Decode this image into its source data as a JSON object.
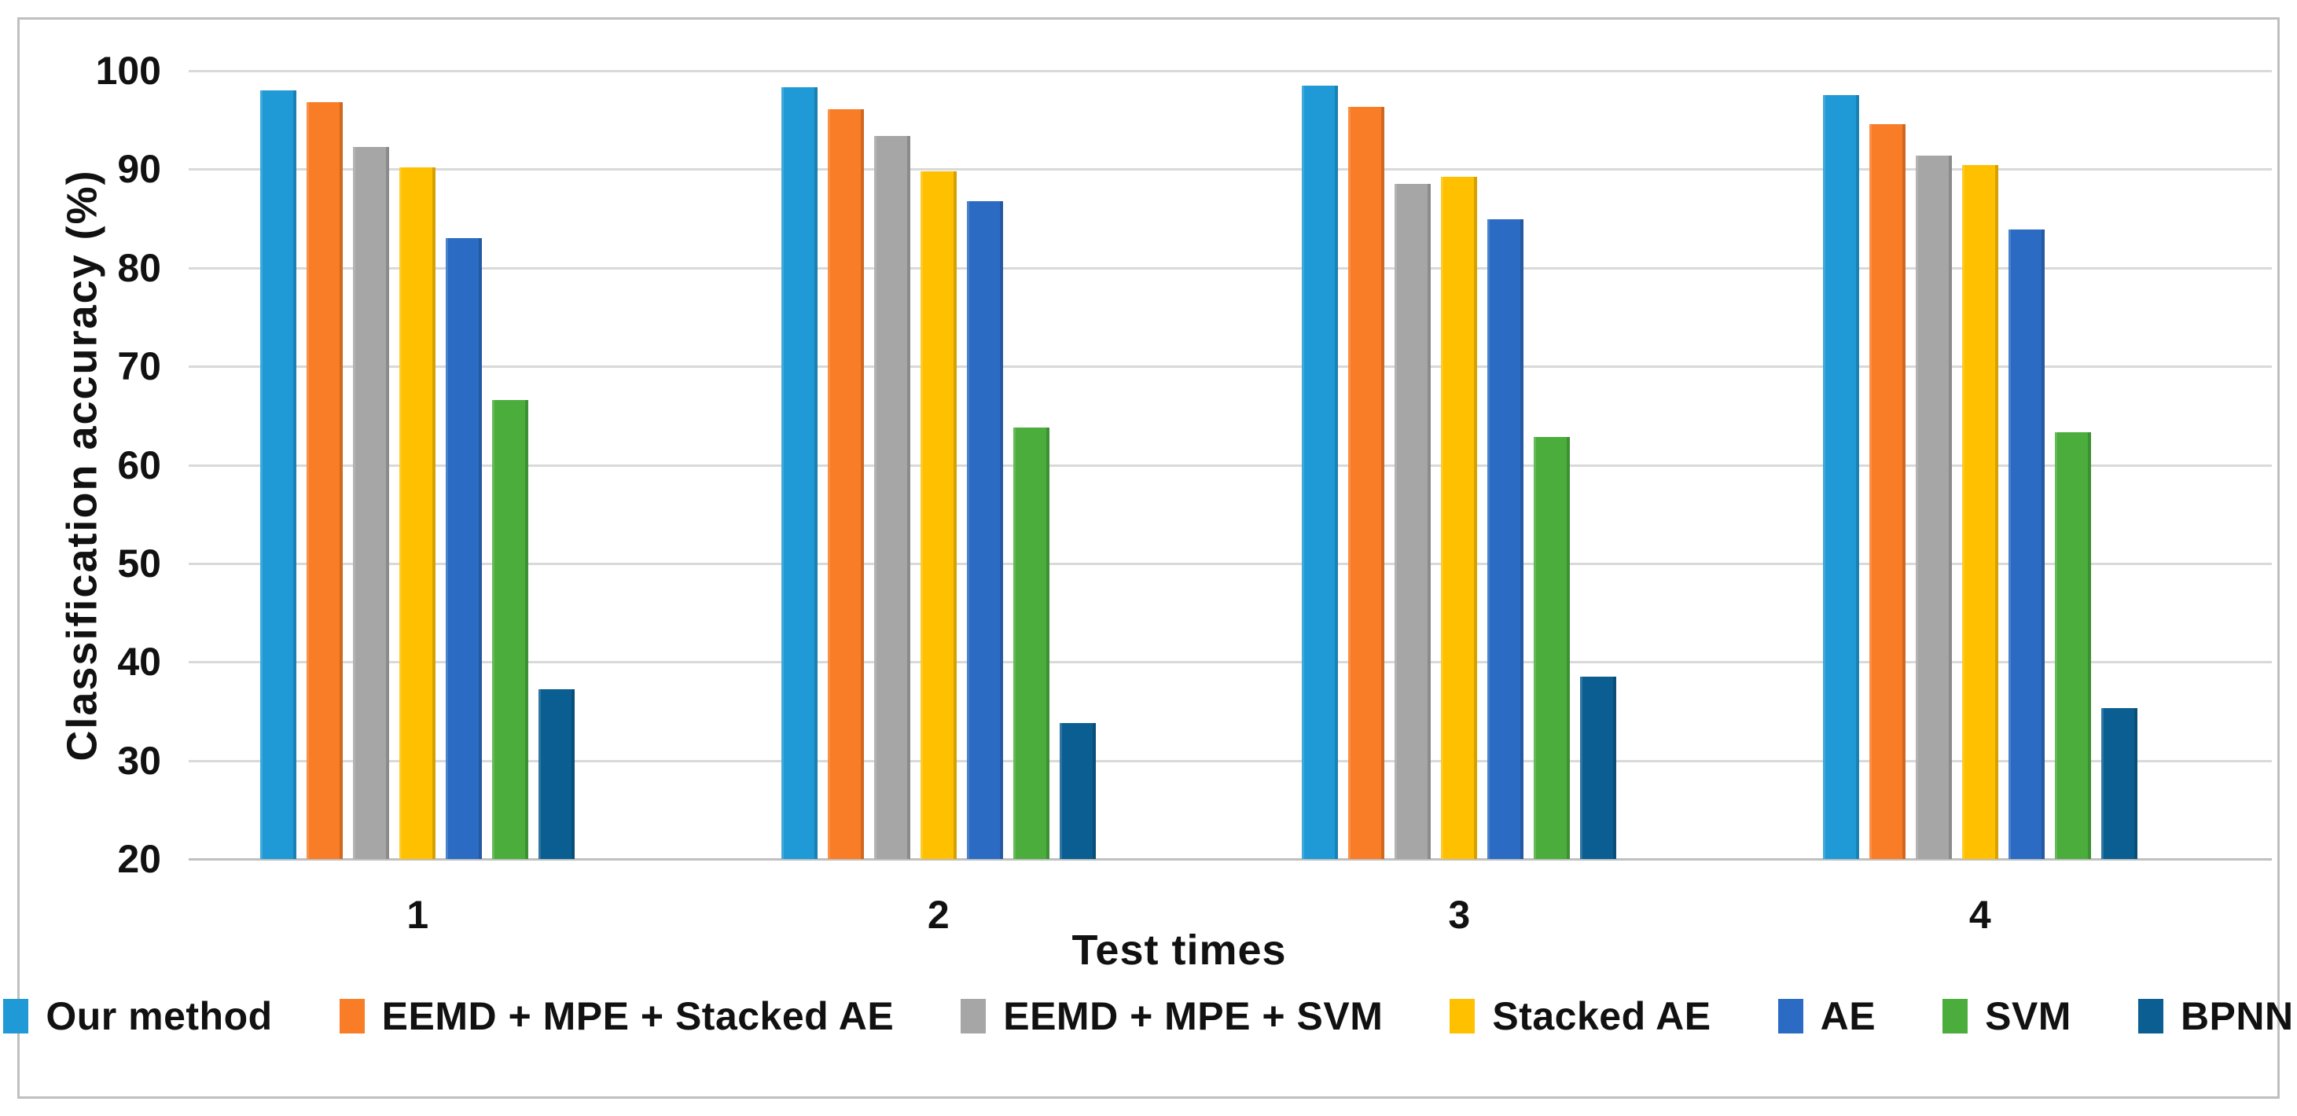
{
  "figure": {
    "background": "#ffffff",
    "border_color": "#bfbfbf",
    "gridline_color": "#d9d9d9",
    "baseline_color": "#bfbfbf",
    "text_color": "#111111"
  },
  "chart_data": {
    "type": "bar",
    "title": "",
    "xlabel": "Test times",
    "ylabel": "Classification accuracy (%)",
    "categories": [
      "1",
      "2",
      "3",
      "4"
    ],
    "y_axis": {
      "min": 20,
      "max": 100,
      "step": 10,
      "ticks": [
        100,
        90,
        80,
        70,
        60,
        50,
        40,
        30,
        20
      ]
    },
    "ylim": [
      20,
      100
    ],
    "grid": true,
    "legend_position": "bottom",
    "series": [
      {
        "name": "Our method",
        "color": "#1f9ad6",
        "values": [
          98.0,
          98.3,
          98.5,
          97.5
        ]
      },
      {
        "name": "EEMD + MPE + Stacked AE",
        "color": "#f97d26",
        "values": [
          96.8,
          96.1,
          96.3,
          94.6
        ]
      },
      {
        "name": "EEMD + MPE + SVM",
        "color": "#a6a6a6",
        "values": [
          92.3,
          93.4,
          88.5,
          91.4
        ]
      },
      {
        "name": "Stacked AE",
        "color": "#ffc000",
        "values": [
          90.2,
          89.8,
          89.2,
          90.4
        ]
      },
      {
        "name": "AE",
        "color": "#2b6bc3",
        "values": [
          83.0,
          86.8,
          84.9,
          83.9
        ]
      },
      {
        "name": "SVM",
        "color": "#4aad3c",
        "values": [
          66.6,
          63.8,
          62.8,
          63.3
        ]
      },
      {
        "name": "BPNN",
        "color": "#0b5e91",
        "values": [
          37.2,
          33.8,
          38.5,
          35.3
        ]
      }
    ]
  }
}
